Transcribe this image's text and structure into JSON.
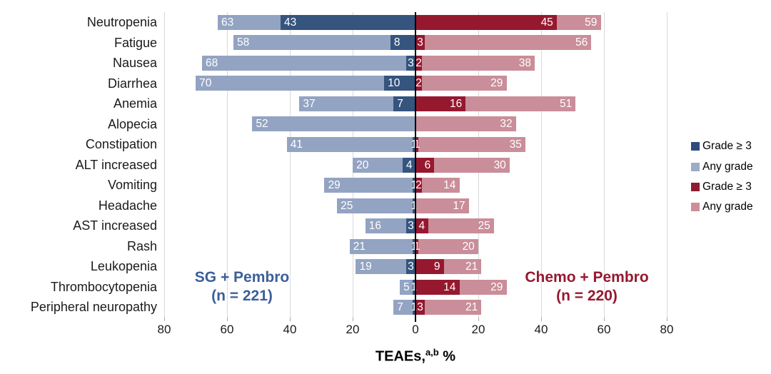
{
  "chart_data": {
    "type": "bar",
    "variant": "diverging_tornado_horizontal",
    "title": "",
    "xlabel_prefix": "TEAEs,",
    "xlabel_sup": "a,b",
    "xlabel_suffix": " %",
    "x_max_each_side": 80,
    "x_tick_step": 20,
    "x_ticks": [
      "80",
      "60",
      "40",
      "20",
      "0",
      "20",
      "40",
      "60",
      "80"
    ],
    "grid": true,
    "gridline_color": "#d9d9d9",
    "zero_line_color": "#000000",
    "legend_position": "right",
    "categories": [
      "Neutropenia",
      "Fatigue",
      "Nausea",
      "Diarrhea",
      "Anemia",
      "Alopecia",
      "Constipation",
      "ALT increased",
      "Vomiting",
      "Headache",
      "AST increased",
      "Rash",
      "Leukopenia",
      "Thrombocytopenia",
      "Peripheral neuropathy"
    ],
    "series": [
      {
        "name": "SG + Pembro — Any grade",
        "side": "left",
        "layer": "base",
        "color": "#93a3c2",
        "values": [
          63,
          58,
          68,
          70,
          37,
          52,
          41,
          20,
          29,
          25,
          16,
          21,
          19,
          5,
          7
        ]
      },
      {
        "name": "SG + Pembro — Grade ≥ 3",
        "side": "left",
        "layer": "overlay",
        "color": "#35547e",
        "values": [
          43,
          8,
          3,
          10,
          7,
          null,
          1,
          4,
          1,
          1,
          3,
          1,
          3,
          1,
          1
        ]
      },
      {
        "name": "Chemo + Pembro — Grade ≥ 3",
        "side": "right",
        "layer": "overlay",
        "color": "#96182f",
        "values": [
          45,
          3,
          2,
          2,
          16,
          null,
          1,
          6,
          2,
          null,
          4,
          1,
          9,
          14,
          3
        ]
      },
      {
        "name": "Chemo + Pembro — Any grade",
        "side": "right",
        "layer": "base",
        "color": "#c98e99",
        "values": [
          59,
          56,
          38,
          29,
          51,
          32,
          35,
          30,
          14,
          17,
          25,
          20,
          21,
          29,
          21
        ]
      }
    ]
  },
  "legend": {
    "items": [
      {
        "label": "Grade ≥ 3",
        "color": "#2e4d7d"
      },
      {
        "label": "Any grade",
        "color": "#9dacc7"
      },
      {
        "label": "Grade ≥ 3",
        "color": "#8f1d30"
      },
      {
        "label": "Any grade",
        "color": "#ce8e99"
      }
    ]
  },
  "annotations": {
    "left_group": {
      "name": "SG + Pembro",
      "n": "(n = 221)",
      "color": "#3b5f99"
    },
    "right_group": {
      "name": "Chemo + Pembro",
      "n": "(n = 220)",
      "color": "#96182f"
    }
  }
}
